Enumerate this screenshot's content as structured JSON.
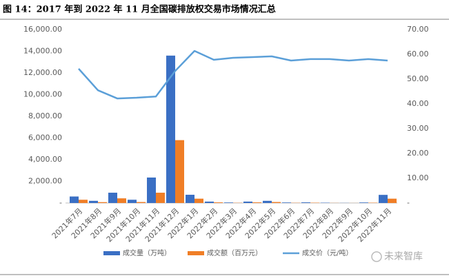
{
  "chart_data": {
    "type": "bar-line",
    "title": "图 14：2017 年到 2022 年 11 月全国碳排放权交易市场情况汇总",
    "categories": [
      "2021年7月",
      "2021年8月",
      "2021年9月",
      "2021年10月",
      "2021年11月",
      "2021年12月",
      "2022年1月",
      "2022年2月",
      "2022年3月",
      "2022年4月",
      "2022年5月",
      "2022年6月",
      "2022年7月",
      "2022年8月",
      "2022年9月",
      "2022年10月",
      "2022年11月"
    ],
    "series": [
      {
        "name": "成交量（万吨）",
        "type": "bar",
        "color": "#3a6fc4",
        "axis": "y",
        "values": [
          600,
          200,
          950,
          300,
          2350,
          13600,
          760,
          130,
          50,
          130,
          200,
          50,
          60,
          30,
          10,
          50,
          750
        ]
      },
      {
        "name": "成交额（百万元）",
        "type": "bar",
        "color": "#f07e26",
        "axis": "y",
        "values": [
          300,
          80,
          430,
          90,
          950,
          5800,
          400,
          60,
          20,
          60,
          90,
          20,
          30,
          10,
          5,
          30,
          400
        ]
      },
      {
        "name": "成交价（元/吨）",
        "type": "line",
        "color": "#5b9fd8",
        "axis": "y2",
        "values": [
          54.2,
          45.5,
          42.2,
          42.5,
          43.0,
          53.3,
          61.4,
          57.8,
          58.6,
          58.9,
          59.2,
          57.5,
          58.1,
          58.1,
          57.5,
          58.1,
          57.5
        ]
      }
    ],
    "ylim": [
      0,
      16000
    ],
    "yticks": [
      {
        "value": 0,
        "label": "-"
      },
      {
        "value": 2000,
        "label": "2,000.00"
      },
      {
        "value": 4000,
        "label": "4,000.00"
      },
      {
        "value": 6000,
        "label": "6,000.00"
      },
      {
        "value": 8000,
        "label": "8,000.00"
      },
      {
        "value": 10000,
        "label": "10,000.00"
      },
      {
        "value": 12000,
        "label": "12,000.00"
      },
      {
        "value": 14000,
        "label": "14,000.00"
      },
      {
        "value": 16000,
        "label": "16,000.00"
      }
    ],
    "y2lim": [
      0,
      70
    ],
    "y2ticks": [
      {
        "value": 0,
        "label": "-"
      },
      {
        "value": 10,
        "label": "10.00"
      },
      {
        "value": 20,
        "label": "20.00"
      },
      {
        "value": 30,
        "label": "30.00"
      },
      {
        "value": 40,
        "label": "40.00"
      },
      {
        "value": 50,
        "label": "50.00"
      },
      {
        "value": 60,
        "label": "60.00"
      },
      {
        "value": 70,
        "label": "70.00"
      }
    ],
    "grid": false,
    "legend": "bottom"
  },
  "watermark": "未来智库"
}
